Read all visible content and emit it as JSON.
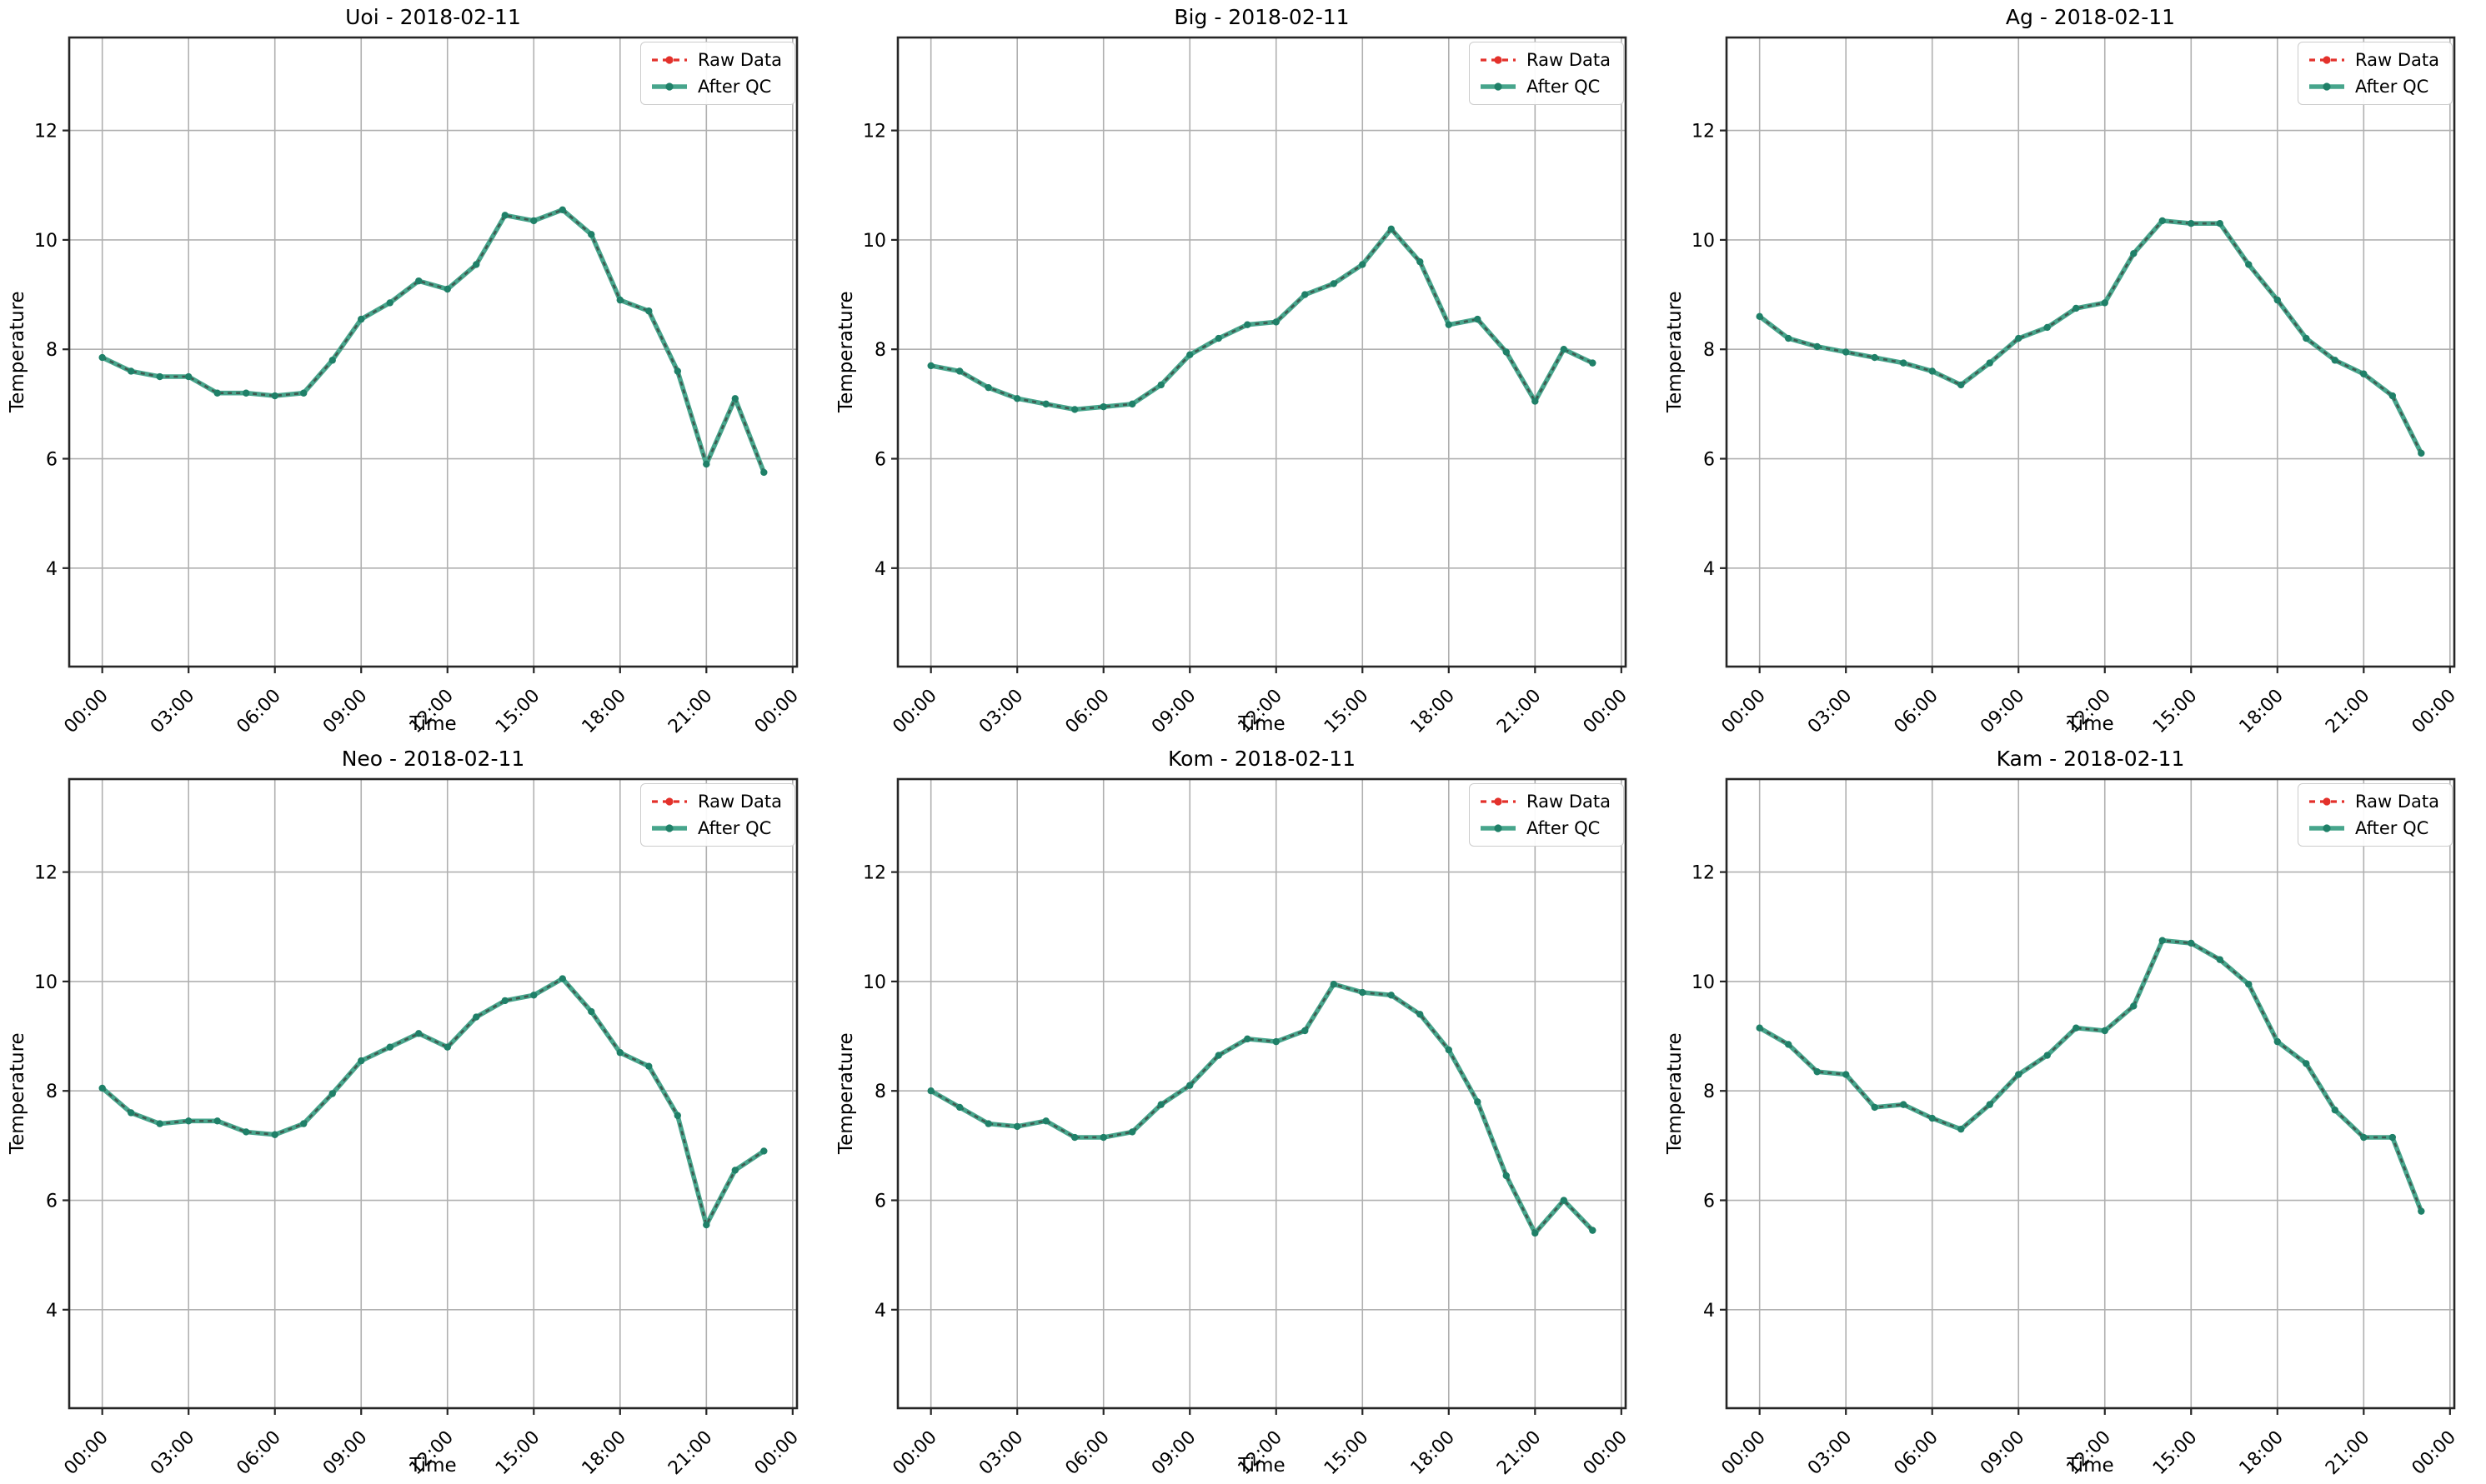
{
  "figure": {
    "background": "#ffffff",
    "rows": 2,
    "cols": 3,
    "date": "2018-02-11"
  },
  "legend": {
    "raw_label": "Raw Data",
    "qc_label": "After QC",
    "position": "upper right"
  },
  "axes": {
    "xlabel": "Time",
    "ylabel": "Temperature"
  },
  "colors": {
    "raw": "#e3312b",
    "qc_line": "#47a58c",
    "qc_marker": "#1f8068",
    "qc_dash_overlay": "#3e5a50",
    "grid": "#b0b0b0",
    "spine": "#262626",
    "text": "#000000",
    "legend_border": "#cccccc"
  },
  "chart_config": {
    "hours": [
      "00:00",
      "01:00",
      "02:00",
      "03:00",
      "04:00",
      "05:00",
      "06:00",
      "07:00",
      "08:00",
      "09:00",
      "10:00",
      "11:00",
      "12:00",
      "13:00",
      "14:00",
      "15:00",
      "16:00",
      "17:00",
      "18:00",
      "19:00",
      "20:00",
      "21:00",
      "22:00",
      "23:00"
    ],
    "xtick_hours": [
      0,
      3,
      6,
      9,
      12,
      15,
      18,
      21,
      24
    ],
    "xtick_labels": [
      "00:00",
      "03:00",
      "06:00",
      "09:00",
      "12:00",
      "15:00",
      "18:00",
      "21:00",
      "00:00"
    ],
    "xtick_rotation_deg": 45,
    "yticks": [
      4,
      6,
      8,
      10,
      12
    ],
    "ylim": [
      2.2,
      13.7
    ],
    "xlim_hours": [
      -1.15,
      24.15
    ],
    "grid": true,
    "note": "In every panel the red dashed Raw Data series is exactly overlapped by the teal After QC series."
  },
  "chart_data": [
    {
      "type": "line",
      "station": "Uoi",
      "title": "Uoi - 2018-02-11",
      "xlabel": "Time",
      "ylabel": "Temperature",
      "series": [
        {
          "name": "Raw Data",
          "style": "red dashed line with circle markers",
          "values_same_as_after_qc": true
        },
        {
          "name": "After QC",
          "style": "thick teal line with dark dash overlay and circle markers",
          "values": [
            7.85,
            7.6,
            7.5,
            7.5,
            7.2,
            7.2,
            7.15,
            7.2,
            7.8,
            8.55,
            8.85,
            9.25,
            9.1,
            9.55,
            10.45,
            10.35,
            10.55,
            10.1,
            8.9,
            8.7,
            7.6,
            5.9,
            7.1,
            5.75
          ]
        }
      ]
    },
    {
      "type": "line",
      "station": "Big",
      "title": "Big - 2018-02-11",
      "xlabel": "Time",
      "ylabel": "Temperature",
      "series": [
        {
          "name": "Raw Data",
          "style": "red dashed line with circle markers",
          "values_same_as_after_qc": true
        },
        {
          "name": "After QC",
          "style": "thick teal line with dark dash overlay and circle markers",
          "values": [
            7.7,
            7.6,
            7.3,
            7.1,
            7.0,
            6.9,
            6.95,
            7.0,
            7.35,
            7.9,
            8.2,
            8.45,
            8.5,
            9.0,
            9.2,
            9.55,
            10.2,
            9.6,
            8.45,
            8.55,
            7.95,
            7.05,
            8.0,
            7.75
          ]
        }
      ]
    },
    {
      "type": "line",
      "station": "Ag",
      "title": "Ag - 2018-02-11",
      "xlabel": "Time",
      "ylabel": "Temperature",
      "series": [
        {
          "name": "Raw Data",
          "style": "red dashed line with circle markers",
          "values_same_as_after_qc": true
        },
        {
          "name": "After QC",
          "style": "thick teal line with dark dash overlay and circle markers",
          "values": [
            8.6,
            8.2,
            8.05,
            7.95,
            7.85,
            7.75,
            7.6,
            7.35,
            7.75,
            8.2,
            8.4,
            8.75,
            8.85,
            9.75,
            10.35,
            10.3,
            10.3,
            9.55,
            8.9,
            8.2,
            7.8,
            7.55,
            7.15,
            6.1
          ]
        }
      ]
    },
    {
      "type": "line",
      "station": "Neo",
      "title": "Neo - 2018-02-11",
      "xlabel": "Time",
      "ylabel": "Temperature",
      "series": [
        {
          "name": "Raw Data",
          "style": "red dashed line with circle markers",
          "values_same_as_after_qc": true
        },
        {
          "name": "After QC",
          "style": "thick teal line with dark dash overlay and circle markers",
          "values": [
            8.05,
            7.6,
            7.4,
            7.45,
            7.45,
            7.25,
            7.2,
            7.4,
            7.95,
            8.55,
            8.8,
            9.05,
            8.8,
            9.35,
            9.65,
            9.75,
            10.05,
            9.45,
            8.7,
            8.45,
            7.55,
            5.55,
            6.55,
            6.9
          ]
        }
      ]
    },
    {
      "type": "line",
      "station": "Kom",
      "title": "Kom - 2018-02-11",
      "xlabel": "Time",
      "ylabel": "Temperature",
      "series": [
        {
          "name": "Raw Data",
          "style": "red dashed line with circle markers",
          "values_same_as_after_qc": true
        },
        {
          "name": "After QC",
          "style": "thick teal line with dark dash overlay and circle markers",
          "values": [
            8.0,
            7.7,
            7.4,
            7.35,
            7.45,
            7.15,
            7.15,
            7.25,
            7.75,
            8.1,
            8.65,
            8.95,
            8.9,
            9.1,
            9.95,
            9.8,
            9.75,
            9.4,
            8.75,
            7.8,
            6.45,
            5.4,
            6.0,
            5.45
          ]
        }
      ]
    },
    {
      "type": "line",
      "station": "Kam",
      "title": "Kam - 2018-02-11",
      "xlabel": "Time",
      "ylabel": "Temperature",
      "series": [
        {
          "name": "Raw Data",
          "style": "red dashed line with circle markers",
          "values_same_as_after_qc": true
        },
        {
          "name": "After QC",
          "style": "thick teal line with dark dash overlay and circle markers",
          "values": [
            9.15,
            8.85,
            8.35,
            8.3,
            7.7,
            7.75,
            7.5,
            7.3,
            7.75,
            8.3,
            8.65,
            9.15,
            9.1,
            9.55,
            10.75,
            10.7,
            10.4,
            9.95,
            8.9,
            8.5,
            7.65,
            7.15,
            7.15,
            5.8
          ]
        }
      ]
    }
  ]
}
